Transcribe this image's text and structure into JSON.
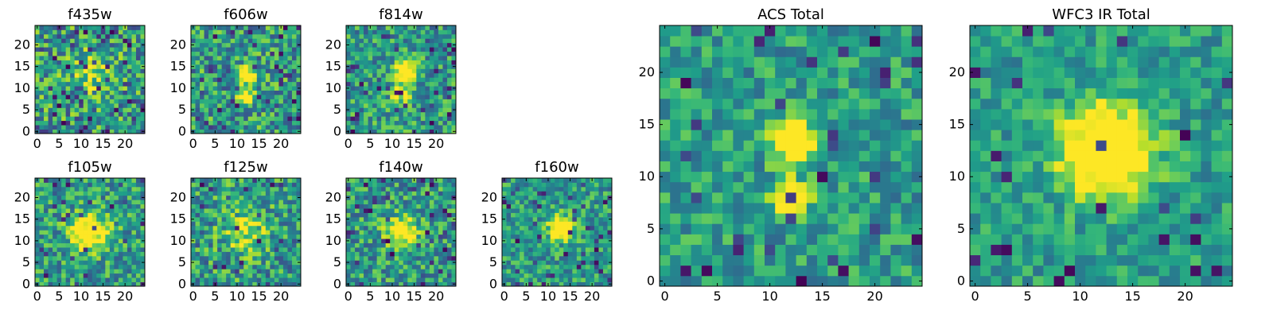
{
  "chart_data": [
    {
      "type": "heatmap",
      "title": "f435w",
      "grid_size": 25,
      "xticks": [
        0,
        5,
        10,
        15,
        20
      ],
      "yticks": [
        0,
        5,
        10,
        15,
        20
      ],
      "colormap": "viridis",
      "seed": 11,
      "blobs": [
        {
          "x": 12,
          "y": 14,
          "sigma": 3.0,
          "amp": 0.35
        }
      ],
      "noise": 0.55,
      "dropout": 0.1
    },
    {
      "type": "heatmap",
      "title": "f606w",
      "grid_size": 25,
      "xticks": [
        0,
        5,
        10,
        15,
        20
      ],
      "yticks": [
        0,
        5,
        10,
        15,
        20
      ],
      "colormap": "viridis",
      "seed": 23,
      "blobs": [
        {
          "x": 12,
          "y": 13,
          "sigma": 1.3,
          "amp": 0.9
        },
        {
          "x": 12,
          "y": 8,
          "sigma": 1.3,
          "amp": 0.8
        }
      ],
      "noise": 0.5,
      "dropout": 0.06
    },
    {
      "type": "heatmap",
      "title": "f814w",
      "grid_size": 25,
      "xticks": [
        0,
        5,
        10,
        15,
        20
      ],
      "yticks": [
        0,
        5,
        10,
        15,
        20
      ],
      "colormap": "viridis",
      "seed": 37,
      "blobs": [
        {
          "x": 13,
          "y": 14,
          "sigma": 1.4,
          "amp": 1.0
        },
        {
          "x": 12,
          "y": 9,
          "sigma": 1.5,
          "amp": 0.5
        }
      ],
      "noise": 0.45,
      "dropout": 0.06
    },
    {
      "type": "heatmap",
      "title": "f105w",
      "grid_size": 25,
      "xticks": [
        0,
        5,
        10,
        15,
        20
      ],
      "yticks": [
        0,
        5,
        10,
        15,
        20
      ],
      "colormap": "viridis",
      "seed": 41,
      "blobs": [
        {
          "x": 12,
          "y": 12,
          "sigma": 3.0,
          "amp": 0.7
        }
      ],
      "noise": 0.45,
      "dropout": 0.05
    },
    {
      "type": "heatmap",
      "title": "f125w",
      "grid_size": 25,
      "xticks": [
        0,
        5,
        10,
        15,
        20
      ],
      "yticks": [
        0,
        5,
        10,
        15,
        20
      ],
      "colormap": "viridis",
      "seed": 53,
      "blobs": [
        {
          "x": 12,
          "y": 12,
          "sigma": 3.5,
          "amp": 0.35
        }
      ],
      "noise": 0.5,
      "dropout": 0.04
    },
    {
      "type": "heatmap",
      "title": "f140w",
      "grid_size": 25,
      "xticks": [
        0,
        5,
        10,
        15,
        20
      ],
      "yticks": [
        0,
        5,
        10,
        15,
        20
      ],
      "colormap": "viridis",
      "seed": 67,
      "blobs": [
        {
          "x": 12,
          "y": 12,
          "sigma": 2.5,
          "amp": 0.6
        }
      ],
      "noise": 0.45,
      "dropout": 0.06
    },
    {
      "type": "heatmap",
      "title": "f160w",
      "grid_size": 25,
      "xticks": [
        0,
        5,
        10,
        15,
        20
      ],
      "yticks": [
        0,
        5,
        10,
        15,
        20
      ],
      "colormap": "viridis",
      "seed": 79,
      "blobs": [
        {
          "x": 13,
          "y": 13,
          "sigma": 1.8,
          "amp": 0.9
        }
      ],
      "noise": 0.4,
      "dropout": 0.07
    },
    {
      "type": "heatmap",
      "title": "ACS Total",
      "grid_size": 25,
      "xticks": [
        0,
        5,
        10,
        15,
        20
      ],
      "yticks": [
        0,
        5,
        10,
        15,
        20
      ],
      "colormap": "viridis",
      "seed": 97,
      "blobs": [
        {
          "x": 12,
          "y": 13.5,
          "sigma": 1.4,
          "amp": 0.9
        },
        {
          "x": 12,
          "y": 8,
          "sigma": 1.2,
          "amp": 0.7
        }
      ],
      "noise": 0.35,
      "dropout": 0.05
    },
    {
      "type": "heatmap",
      "title": "WFC3 IR Total",
      "grid_size": 25,
      "xticks": [
        0,
        5,
        10,
        15,
        20
      ],
      "yticks": [
        0,
        5,
        10,
        15,
        20
      ],
      "colormap": "viridis",
      "seed": 113,
      "blobs": [
        {
          "x": 12.5,
          "y": 12.5,
          "sigma": 3.0,
          "amp": 0.9
        }
      ],
      "noise": 0.3,
      "dropout": 0.04
    }
  ],
  "colors": {
    "viridis_stops": [
      "#440154",
      "#482878",
      "#3e4989",
      "#31688e",
      "#26828e",
      "#1f9e89",
      "#35b779",
      "#6ece58",
      "#b5de2b",
      "#fde725"
    ],
    "axis": "#000000",
    "background": "#ffffff"
  }
}
